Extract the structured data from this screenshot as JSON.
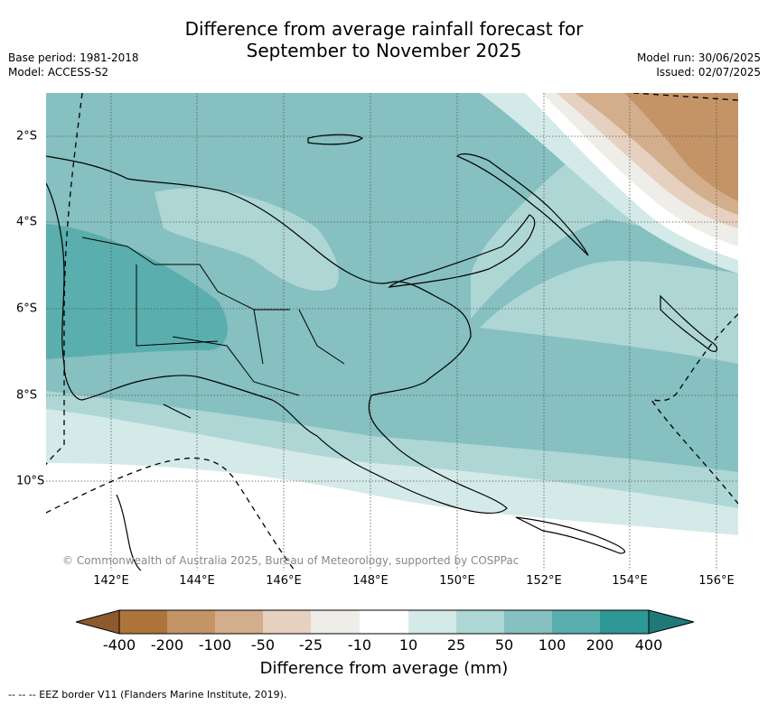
{
  "title_line1": "Difference from average rainfall forecast for",
  "title_line2": "September to November 2025",
  "base_period": "Base period: 1981-2018",
  "model": "Model: ACCESS-S2",
  "model_run": "Model run: 30/06/2025",
  "issued": "Issued: 02/07/2025",
  "copyright": "© Commonwealth of Australia 2025, Bureau of Meteorology, supported by COSPPac",
  "lon_ticks": [
    "142°E",
    "144°E",
    "146°E",
    "148°E",
    "150°E",
    "152°E",
    "154°E",
    "156°E"
  ],
  "lat_ticks": [
    "2°S",
    "4°S",
    "6°S",
    "8°S",
    "10°S"
  ],
  "colorbar": {
    "title": "Difference from average (mm)",
    "tick_labels": [
      "-400",
      "-200",
      "-100",
      "-50",
      "-25",
      "-10",
      "10",
      "25",
      "50",
      "100",
      "200",
      "400"
    ],
    "colors": {
      "below_-400": "#8c5a2b",
      "-400_-200": "#ad743c",
      "-200_-100": "#c49466",
      "-100_-50": "#d3ae8c",
      "-50_-25": "#e6d0bf",
      "-25_-10": "#efede8",
      "-10_10": "#ffffff",
      "10_25": "#d4eae8",
      "25_50": "#aed6d5",
      "50_100": "#86c0c0",
      "100_200": "#5aaeae",
      "200_400": "#2e9896",
      "above_400": "#1f7a77"
    }
  },
  "footnote": "--  --  -- EEZ border V11 (Flanders Marine Institute, 2019)."
}
